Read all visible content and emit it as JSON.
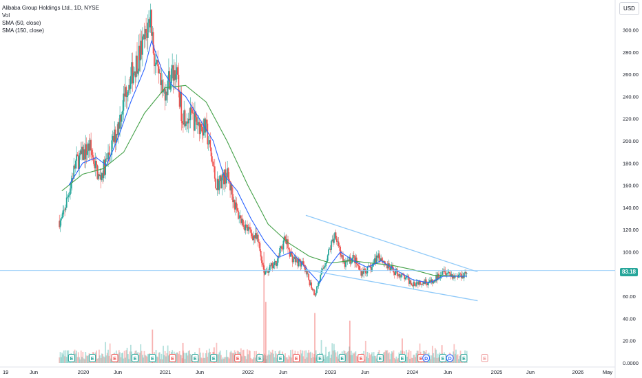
{
  "chart_data": {
    "type": "candlestick",
    "title": "Alibaba Group Holdings Ltd., 1D, NYSE",
    "indicators": [
      "Vol",
      "SMA (50, close)",
      "SMA (150, close)"
    ],
    "currency": "USD",
    "last_price": "83.18",
    "y_ticks": [
      "0.0000",
      "20.00",
      "40.00",
      "60.00",
      "80.00",
      "100.00",
      "120.00",
      "140.00",
      "160.00",
      "180.00",
      "200.00",
      "220.00",
      "240.00",
      "260.00",
      "280.00",
      "300.00"
    ],
    "x_ticks": [
      "19",
      "Jun",
      "2020",
      "Jun",
      "2021",
      "Jun",
      "2022",
      "Jun",
      "2023",
      "Jun",
      "2024",
      "Jun",
      "2025",
      "Jun",
      "2026",
      "May"
    ],
    "price_path": [
      {
        "date": "2019-10-01",
        "price": 128
      },
      {
        "date": "2019-12-01",
        "price": 180
      },
      {
        "date": "2020-02-01",
        "price": 195
      },
      {
        "date": "2020-03-15",
        "price": 165
      },
      {
        "date": "2020-05-01",
        "price": 190
      },
      {
        "date": "2020-06-01",
        "price": 210
      },
      {
        "date": "2020-07-15",
        "price": 250
      },
      {
        "date": "2020-08-15",
        "price": 265
      },
      {
        "date": "2020-10-01",
        "price": 290
      },
      {
        "date": "2020-10-28",
        "price": 314
      },
      {
        "date": "2020-11-15",
        "price": 270
      },
      {
        "date": "2020-12-20",
        "price": 240
      },
      {
        "date": "2021-01-15",
        "price": 255
      },
      {
        "date": "2021-02-15",
        "price": 265
      },
      {
        "date": "2021-03-15",
        "price": 225
      },
      {
        "date": "2021-05-01",
        "price": 220
      },
      {
        "date": "2021-07-01",
        "price": 210
      },
      {
        "date": "2021-08-15",
        "price": 160
      },
      {
        "date": "2021-10-01",
        "price": 170
      },
      {
        "date": "2021-11-15",
        "price": 135
      },
      {
        "date": "2022-01-01",
        "price": 120
      },
      {
        "date": "2022-02-15",
        "price": 110
      },
      {
        "date": "2022-03-15",
        "price": 82
      },
      {
        "date": "2022-05-01",
        "price": 88
      },
      {
        "date": "2022-06-15",
        "price": 112
      },
      {
        "date": "2022-07-15",
        "price": 95
      },
      {
        "date": "2022-09-01",
        "price": 88
      },
      {
        "date": "2022-10-25",
        "price": 62
      },
      {
        "date": "2022-12-01",
        "price": 85
      },
      {
        "date": "2023-01-25",
        "price": 118
      },
      {
        "date": "2023-03-01",
        "price": 88
      },
      {
        "date": "2023-04-15",
        "price": 95
      },
      {
        "date": "2023-05-15",
        "price": 82
      },
      {
        "date": "2023-07-01",
        "price": 85
      },
      {
        "date": "2023-08-01",
        "price": 98
      },
      {
        "date": "2023-09-15",
        "price": 86
      },
      {
        "date": "2023-11-01",
        "price": 80
      },
      {
        "date": "2024-01-01",
        "price": 72
      },
      {
        "date": "2024-02-15",
        "price": 74
      },
      {
        "date": "2024-04-01",
        "price": 72
      },
      {
        "date": "2024-05-15",
        "price": 85
      },
      {
        "date": "2024-07-01",
        "price": 78
      },
      {
        "date": "2024-08-15",
        "price": 80
      },
      {
        "date": "2024-08-29",
        "price": 83.18
      }
    ],
    "sma50": [
      {
        "date": "2019-11-01",
        "price": 160
      },
      {
        "date": "2020-01-01",
        "price": 180
      },
      {
        "date": "2020-03-01",
        "price": 185
      },
      {
        "date": "2020-04-15",
        "price": 178
      },
      {
        "date": "2020-06-01",
        "price": 200
      },
      {
        "date": "2020-08-01",
        "price": 235
      },
      {
        "date": "2020-10-01",
        "price": 265
      },
      {
        "date": "2020-11-01",
        "price": 290
      },
      {
        "date": "2020-12-15",
        "price": 265
      },
      {
        "date": "2021-02-01",
        "price": 250
      },
      {
        "date": "2021-04-01",
        "price": 240
      },
      {
        "date": "2021-06-01",
        "price": 220
      },
      {
        "date": "2021-08-01",
        "price": 200
      },
      {
        "date": "2021-09-15",
        "price": 170
      },
      {
        "date": "2021-11-15",
        "price": 155
      },
      {
        "date": "2022-01-15",
        "price": 130
      },
      {
        "date": "2022-03-15",
        "price": 110
      },
      {
        "date": "2022-05-15",
        "price": 95
      },
      {
        "date": "2022-07-15",
        "price": 100
      },
      {
        "date": "2022-10-01",
        "price": 82
      },
      {
        "date": "2022-11-15",
        "price": 72
      },
      {
        "date": "2023-01-01",
        "price": 88
      },
      {
        "date": "2023-02-15",
        "price": 100
      },
      {
        "date": "2023-04-15",
        "price": 92
      },
      {
        "date": "2023-06-15",
        "price": 86
      },
      {
        "date": "2023-08-15",
        "price": 92
      },
      {
        "date": "2023-10-15",
        "price": 84
      },
      {
        "date": "2024-01-01",
        "price": 75
      },
      {
        "date": "2024-03-15",
        "price": 72
      },
      {
        "date": "2024-05-15",
        "price": 78
      },
      {
        "date": "2024-08-29",
        "price": 78
      }
    ],
    "sma150": [
      {
        "date": "2019-10-01",
        "price": 155
      },
      {
        "date": "2020-01-01",
        "price": 170
      },
      {
        "date": "2020-04-01",
        "price": 175
      },
      {
        "date": "2020-07-01",
        "price": 190
      },
      {
        "date": "2020-10-01",
        "price": 225
      },
      {
        "date": "2021-01-01",
        "price": 248
      },
      {
        "date": "2021-04-01",
        "price": 250
      },
      {
        "date": "2021-07-01",
        "price": 235
      },
      {
        "date": "2021-10-01",
        "price": 200
      },
      {
        "date": "2022-01-01",
        "price": 160
      },
      {
        "date": "2022-04-01",
        "price": 125
      },
      {
        "date": "2022-07-01",
        "price": 108
      },
      {
        "date": "2022-10-01",
        "price": 96
      },
      {
        "date": "2023-01-01",
        "price": 90
      },
      {
        "date": "2023-04-01",
        "price": 92
      },
      {
        "date": "2023-07-01",
        "price": 90
      },
      {
        "date": "2023-10-01",
        "price": 88
      },
      {
        "date": "2024-01-01",
        "price": 84
      },
      {
        "date": "2024-04-01",
        "price": 79
      },
      {
        "date": "2024-08-29",
        "price": 78
      }
    ],
    "channel_upper": [
      {
        "date": "2022-09-15",
        "price": 133
      },
      {
        "date": "2024-10-15",
        "price": 82
      }
    ],
    "channel_lower": [
      {
        "date": "2022-09-15",
        "price": 84
      },
      {
        "date": "2024-10-15",
        "price": 56
      }
    ],
    "horizontal_line_price": 83.18,
    "volume_spikes": [
      {
        "date": "2020-11-05",
        "value": 30
      },
      {
        "date": "2021-03-20",
        "value": 18
      },
      {
        "date": "2021-08-05",
        "value": 14
      },
      {
        "date": "2022-03-14",
        "value": 100
      },
      {
        "date": "2022-03-22",
        "value": 55
      },
      {
        "date": "2022-10-25",
        "value": 45
      },
      {
        "date": "2023-03-29",
        "value": 38
      },
      {
        "date": "2023-11-16",
        "value": 22
      },
      {
        "date": "2024-05-10",
        "value": 16
      }
    ],
    "events": [
      {
        "date": "2019-11-13",
        "label": "E"
      },
      {
        "date": "2020-02-13",
        "label": "E"
      },
      {
        "date": "2020-05-22",
        "label": "E"
      },
      {
        "date": "2020-08-20",
        "label": "E"
      },
      {
        "date": "2020-11-05",
        "label": "E"
      },
      {
        "date": "2021-02-02",
        "label": "E"
      },
      {
        "date": "2021-05-13",
        "label": "E"
      },
      {
        "date": "2021-08-03",
        "label": "E"
      },
      {
        "date": "2021-11-18",
        "label": "E"
      },
      {
        "date": "2022-02-24",
        "label": "E"
      },
      {
        "date": "2022-05-26",
        "label": "E"
      },
      {
        "date": "2022-08-04",
        "label": "E"
      },
      {
        "date": "2022-11-17",
        "label": "E"
      },
      {
        "date": "2023-02-23",
        "label": "E"
      },
      {
        "date": "2023-05-18",
        "label": "E"
      },
      {
        "date": "2023-08-10",
        "label": "E"
      },
      {
        "date": "2023-11-16",
        "label": "E"
      },
      {
        "date": "2024-02-07",
        "label": "E"
      },
      {
        "date": "2024-03-01",
        "label": "D"
      },
      {
        "date": "2024-05-14",
        "label": "E"
      },
      {
        "date": "2024-06-14",
        "label": "D"
      },
      {
        "date": "2024-08-15",
        "label": "E"
      },
      {
        "date": "2024-11-15",
        "label": "E"
      }
    ]
  }
}
